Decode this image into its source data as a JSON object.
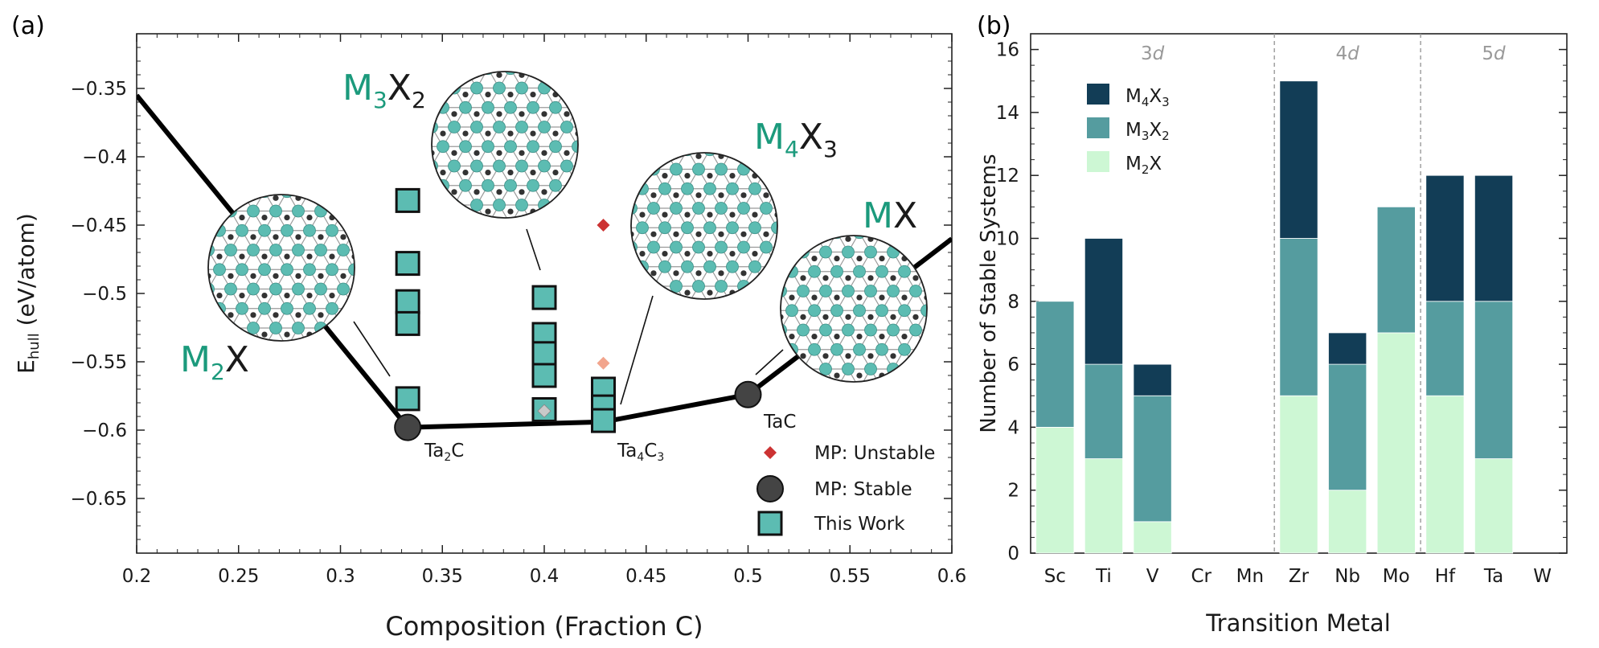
{
  "colors": {
    "m4x3": "#123d56",
    "m3x2": "#559c9f",
    "m2x": "#cdf7d4",
    "teal_marker": "#5cbcb2",
    "mp_stable": "#444444",
    "mp_unstable_dark": "#cc3333",
    "mp_unstable_light": "#f2a58d",
    "mp_unstable_gray": "#c9c9c9",
    "label_teal": "#1b9a7c"
  },
  "chart_data": [
    {
      "panel": "(a)",
      "type": "scatter",
      "xlabel": "Composition (Fraction C)",
      "ylabel_main": "E",
      "ylabel_sub": "hull",
      "ylabel_rest": " (eV/atom)",
      "xlim": [
        0.2,
        0.6
      ],
      "ylim": [
        -0.69,
        -0.31
      ],
      "xticks": [
        0.2,
        0.25,
        0.3,
        0.35,
        0.4,
        0.45,
        0.5,
        0.55,
        0.6
      ],
      "xtick_labels": [
        "0.2",
        "0.25",
        "0.3",
        "0.35",
        "0.4",
        "0.45",
        "0.5",
        "0.55",
        "0.6"
      ],
      "yticks": [
        -0.35,
        -0.4,
        -0.45,
        -0.5,
        -0.55,
        -0.6,
        -0.65
      ],
      "ytick_labels": [
        "−0.35",
        "−0.4",
        "−0.45",
        "−0.5",
        "−0.55",
        "−0.6",
        "−0.65"
      ],
      "hull_line": [
        {
          "x": 0.2,
          "y": -0.355
        },
        {
          "x": 0.333,
          "y": -0.598
        },
        {
          "x": 0.429,
          "y": -0.594
        },
        {
          "x": 0.5,
          "y": -0.574
        },
        {
          "x": 0.6,
          "y": -0.46
        }
      ],
      "this_work": [
        {
          "x": 0.333,
          "y": -0.432
        },
        {
          "x": 0.333,
          "y": -0.478
        },
        {
          "x": 0.333,
          "y": -0.506
        },
        {
          "x": 0.333,
          "y": -0.522
        },
        {
          "x": 0.333,
          "y": -0.577
        },
        {
          "x": 0.4,
          "y": -0.503
        },
        {
          "x": 0.4,
          "y": -0.53
        },
        {
          "x": 0.4,
          "y": -0.544
        },
        {
          "x": 0.4,
          "y": -0.56
        },
        {
          "x": 0.4,
          "y": -0.585
        },
        {
          "x": 0.429,
          "y": -0.57
        },
        {
          "x": 0.429,
          "y": -0.583
        },
        {
          "x": 0.429,
          "y": -0.593
        }
      ],
      "mp_stable": [
        {
          "x": 0.333,
          "y": -0.598,
          "label": "Ta",
          "label_sub": "2",
          "label_tail": "C"
        },
        {
          "x": 0.5,
          "y": -0.574,
          "label": "TaC",
          "label_sub": "",
          "label_tail": ""
        }
      ],
      "mp_stable_extra_labels": [
        {
          "x": 0.429,
          "y": -0.594,
          "label": "Ta",
          "label_sub": "4",
          "label_tail": "C",
          "label_sub2": "3"
        }
      ],
      "mp_unstable": [
        {
          "x": 0.429,
          "y": -0.45,
          "tone": "dark"
        },
        {
          "x": 0.429,
          "y": -0.551,
          "tone": "light"
        },
        {
          "x": 0.4,
          "y": -0.586,
          "tone": "gray"
        }
      ],
      "phase_labels": [
        {
          "main": "M",
          "sub": "2",
          "tail": "X",
          "sub2": ""
        },
        {
          "main": "M",
          "sub": "3",
          "tail": "X",
          "sub2": "2"
        },
        {
          "main": "M",
          "sub": "4",
          "tail": "X",
          "sub2": "3"
        },
        {
          "main": "M",
          "sub": "",
          "tail": "X",
          "sub2": ""
        }
      ],
      "legend": [
        {
          "label": "MP: Unstable",
          "marker": "diamond"
        },
        {
          "label": "MP: Stable",
          "marker": "circle"
        },
        {
          "label": "This Work",
          "marker": "square"
        }
      ],
      "legend_position": "bottom-right"
    },
    {
      "panel": "(b)",
      "type": "bar",
      "stacked": true,
      "xlabel": "Transition Metal",
      "ylabel": "Number of Stable Systems",
      "ylim": [
        0,
        16.5
      ],
      "yticks": [
        0,
        2,
        4,
        6,
        8,
        10,
        12,
        14,
        16
      ],
      "categories": [
        "Sc",
        "Ti",
        "V",
        "Cr",
        "Mn",
        "Zr",
        "Nb",
        "Mo",
        "Hf",
        "Ta",
        "W"
      ],
      "series": [
        {
          "name": "M2X",
          "label_main": "M",
          "label_sub": "2",
          "label_tail": "X",
          "label_sub2": "",
          "values": [
            4,
            3,
            1,
            0,
            0,
            5,
            2,
            7,
            5,
            3,
            0
          ]
        },
        {
          "name": "M3X2",
          "label_main": "M",
          "label_sub": "3",
          "label_tail": "X",
          "label_sub2": "2",
          "values": [
            4,
            3,
            4,
            0,
            0,
            5,
            4,
            4,
            3,
            5,
            0
          ]
        },
        {
          "name": "M4X3",
          "label_main": "M",
          "label_sub": "4",
          "label_tail": "X",
          "label_sub2": "3",
          "values": [
            0,
            4,
            1,
            0,
            0,
            5,
            1,
            0,
            4,
            4,
            0
          ]
        }
      ],
      "groups": [
        {
          "label": "3",
          "suffix": "d",
          "start": 0,
          "end": 4
        },
        {
          "label": "4",
          "suffix": "d",
          "start": 5,
          "end": 7
        },
        {
          "label": "5",
          "suffix": "d",
          "start": 8,
          "end": 10
        }
      ],
      "legend_position": "top-left"
    }
  ]
}
